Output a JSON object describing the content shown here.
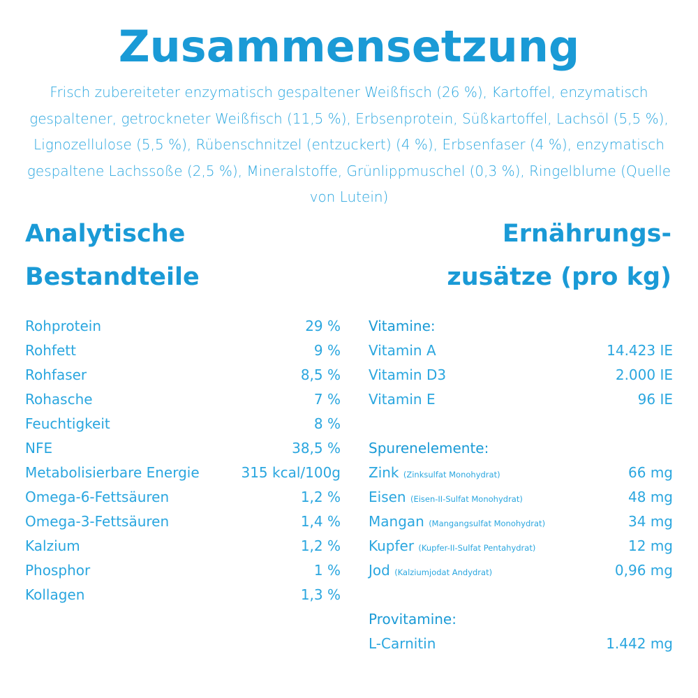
{
  "title": "Zusammensetzung",
  "ingredients": "Frisch zubereiteter enzymatisch gespaltener Weißfisch (26 %), Kartoffel, enzymatisch gespaltener, getrockneter Weißfisch (11,5 %), Erbsenprotein, Süßkartoffel, Lachsöl (5,5 %), Lignozellulose (5,5 %), Rübenschnitzel (entzuckert) (4 %), Erbsenfaser (4 %), enzymatisch gespaltene Lachssoße (2,5 %), Mineralstoffe, Grünlippmuschel (0,3 %), Ringelblume (Quelle von Lutein)",
  "analytic": {
    "heading_line1": "Analytische",
    "heading_line2": "Bestandteile",
    "rows": [
      {
        "label": "Rohprotein",
        "value": "29 %"
      },
      {
        "label": "Rohfett",
        "value": "9 %"
      },
      {
        "label": "Rohfaser",
        "value": "8,5 %"
      },
      {
        "label": "Rohasche",
        "value": "7 %"
      },
      {
        "label": "Feuchtigkeit",
        "value": "8 %"
      },
      {
        "label": "NFE",
        "value": "38,5 %"
      },
      {
        "label": "Metabolisierbare Energie",
        "value": "315 kcal/100g"
      },
      {
        "label": "Omega-6-Fettsäuren",
        "value": "1,2 %"
      },
      {
        "label": "Omega-3-Fettsäuren",
        "value": "1,4 %"
      },
      {
        "label": "Kalzium",
        "value": "1,2 %"
      },
      {
        "label": "Phosphor",
        "value": "1 %"
      },
      {
        "label": "Kollagen",
        "value": "1,3 %"
      }
    ]
  },
  "additives": {
    "heading_line1": "Ernährungs-",
    "heading_line2": "zusätze (pro kg)",
    "vitamins": {
      "title": "Vitamine:",
      "rows": [
        {
          "label": "Vitamin A",
          "value": "14.423 IE"
        },
        {
          "label": "Vitamin D3",
          "value": "2.000 IE"
        },
        {
          "label": "Vitamin E",
          "value": "96 IE"
        }
      ]
    },
    "trace": {
      "title": "Spurenelemente:",
      "rows": [
        {
          "label": "Zink",
          "note": "(Zinksulfat Monohydrat)",
          "value": "66 mg"
        },
        {
          "label": "Eisen",
          "note": "(Eisen-II-Sulfat Monohydrat)",
          "value": "48 mg"
        },
        {
          "label": "Mangan",
          "note": "(Mangangsulfat Monohydrat)",
          "value": "34 mg"
        },
        {
          "label": "Kupfer",
          "note": "(Kupfer-II-Sulfat Pentahydrat)",
          "value": "12 mg"
        },
        {
          "label": "Jod",
          "note": "(Kalziumjodat Andydrat)",
          "value": "0,96 mg"
        }
      ]
    },
    "provitamins": {
      "title": "Provitamine:",
      "rows": [
        {
          "label": "L-Carnitin",
          "value": "1.442 mg"
        }
      ]
    }
  }
}
